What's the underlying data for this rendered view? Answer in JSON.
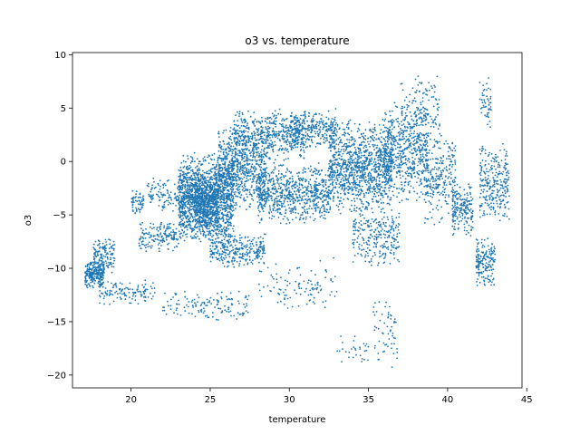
{
  "chart_data": {
    "type": "scatter",
    "title": "o3 vs. temperature",
    "xlabel": "temperature",
    "ylabel": "o3",
    "xlim": [
      16.3,
      44.7
    ],
    "ylim": [
      -21.2,
      10.2
    ],
    "xticks": [
      20,
      25,
      30,
      35,
      40,
      45
    ],
    "yticks": [
      -20,
      -15,
      -10,
      -5,
      0,
      5,
      10
    ],
    "grid": false,
    "legend": "none",
    "marker_color": "#1f77b4",
    "clusters": [
      {
        "x": [
          17.1,
          18.3
        ],
        "y": [
          -12.0,
          -9.0
        ],
        "n": 260
      },
      {
        "x": [
          17.6,
          19.0
        ],
        "y": [
          -10.5,
          -7.0
        ],
        "n": 120
      },
      {
        "x": [
          18.0,
          21.5
        ],
        "y": [
          -13.5,
          -11.0
        ],
        "n": 120
      },
      {
        "x": [
          20.0,
          20.8
        ],
        "y": [
          -5.0,
          -2.5
        ],
        "n": 60
      },
      {
        "x": [
          20.5,
          23.0
        ],
        "y": [
          -8.5,
          -5.5
        ],
        "n": 160
      },
      {
        "x": [
          21.0,
          24.0
        ],
        "y": [
          -5.0,
          -1.5
        ],
        "n": 160
      },
      {
        "x": [
          22.0,
          27.5
        ],
        "y": [
          -15.0,
          -12.0
        ],
        "n": 140
      },
      {
        "x": [
          23.0,
          26.5
        ],
        "y": [
          -8.0,
          1.0
        ],
        "n": 1300
      },
      {
        "x": [
          24.0,
          25.5
        ],
        "y": [
          -7.0,
          -1.0
        ],
        "n": 500
      },
      {
        "x": [
          25.5,
          28.5
        ],
        "y": [
          -5.0,
          3.5
        ],
        "n": 700
      },
      {
        "x": [
          25.0,
          28.5
        ],
        "y": [
          -10.0,
          -6.5
        ],
        "n": 300
      },
      {
        "x": [
          26.5,
          31.0
        ],
        "y": [
          0.0,
          5.0
        ],
        "n": 500
      },
      {
        "x": [
          28.0,
          32.5
        ],
        "y": [
          -6.0,
          0.0
        ],
        "n": 700
      },
      {
        "x": [
          28.0,
          33.0
        ],
        "y": [
          -14.0,
          -9.0
        ],
        "n": 110
      },
      {
        "x": [
          30.0,
          33.0
        ],
        "y": [
          1.0,
          5.0
        ],
        "n": 300
      },
      {
        "x": [
          32.5,
          36.5
        ],
        "y": [
          -5.0,
          4.0
        ],
        "n": 1100
      },
      {
        "x": [
          34.0,
          37.0
        ],
        "y": [
          -10.0,
          -4.0
        ],
        "n": 260
      },
      {
        "x": [
          36.0,
          38.8
        ],
        "y": [
          -4.0,
          6.0
        ],
        "n": 550
      },
      {
        "x": [
          37.0,
          39.5
        ],
        "y": [
          1.0,
          8.5
        ],
        "n": 150
      },
      {
        "x": [
          38.5,
          40.5
        ],
        "y": [
          -6.0,
          3.0
        ],
        "n": 260
      },
      {
        "x": [
          40.3,
          41.6
        ],
        "y": [
          -7.0,
          -2.0
        ],
        "n": 180
      },
      {
        "x": [
          41.8,
          43.0
        ],
        "y": [
          -12.0,
          -7.0
        ],
        "n": 170
      },
      {
        "x": [
          42.0,
          43.9
        ],
        "y": [
          -6.0,
          2.0
        ],
        "n": 280
      },
      {
        "x": [
          42.0,
          42.8
        ],
        "y": [
          3.0,
          8.0
        ],
        "n": 50
      },
      {
        "x": [
          33.0,
          35.0
        ],
        "y": [
          -19.0,
          -16.0
        ],
        "n": 30
      },
      {
        "x": [
          35.3,
          37.0
        ],
        "y": [
          -19.6,
          -12.5
        ],
        "n": 60
      }
    ]
  }
}
